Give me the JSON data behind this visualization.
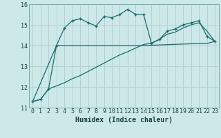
{
  "title": "",
  "xlabel": "Humidex (Indice chaleur)",
  "background_color": "#cce8e8",
  "grid_color": "#b8d0d0",
  "line_color": "#1a6b6b",
  "xlim": [
    -0.5,
    23.5
  ],
  "ylim": [
    11,
    16
  ],
  "yticks": [
    11,
    12,
    13,
    14,
    15,
    16
  ],
  "xticks": [
    0,
    1,
    2,
    3,
    4,
    5,
    6,
    7,
    8,
    9,
    10,
    11,
    12,
    13,
    14,
    15,
    16,
    17,
    18,
    19,
    20,
    21,
    22,
    23
  ],
  "curve1_x": [
    0,
    1,
    2,
    3,
    4,
    5,
    6,
    7,
    8,
    9,
    10,
    11,
    12,
    13,
    14,
    15,
    16,
    17,
    18,
    19,
    20,
    21,
    22,
    23
  ],
  "curve1_y": [
    11.3,
    11.4,
    11.9,
    14.0,
    14.85,
    15.2,
    15.3,
    15.1,
    14.95,
    15.4,
    15.35,
    15.5,
    15.75,
    15.5,
    15.5,
    14.1,
    14.3,
    14.7,
    14.8,
    15.0,
    15.1,
    15.2,
    14.45,
    14.2
  ],
  "curve2_x": [
    0,
    3,
    14,
    21,
    22,
    23
  ],
  "curve2_y": [
    11.3,
    14.0,
    14.0,
    14.1,
    14.1,
    14.2
  ],
  "curve3_x": [
    0,
    1,
    2,
    3,
    4,
    5,
    6,
    7,
    8,
    9,
    10,
    11,
    12,
    13,
    14,
    15,
    16,
    17,
    18,
    19,
    20,
    21,
    22,
    23
  ],
  "curve3_y": [
    11.3,
    11.4,
    11.9,
    12.05,
    12.2,
    12.4,
    12.55,
    12.75,
    12.95,
    13.15,
    13.35,
    13.55,
    13.7,
    13.88,
    14.05,
    14.12,
    14.3,
    14.55,
    14.65,
    14.85,
    15.0,
    15.1,
    14.7,
    14.2
  ]
}
